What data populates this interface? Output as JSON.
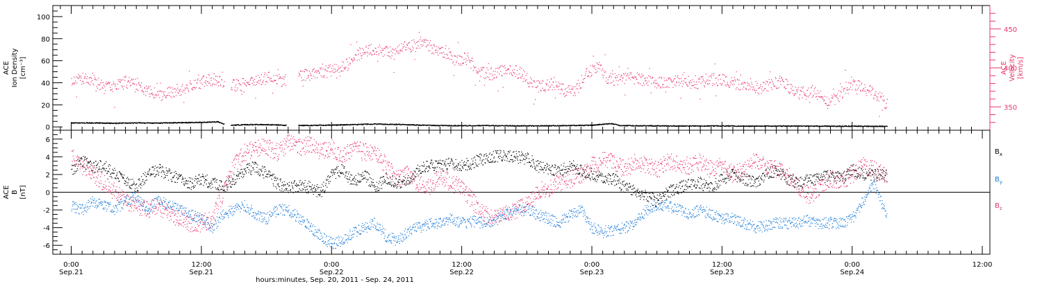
{
  "chart_data": [
    {
      "type": "scatter",
      "panel": "top",
      "ylabel": [
        "ACE",
        "Ion Density",
        "[cm⁻³]"
      ],
      "ylabel_right": [
        "ACE",
        "Velocity",
        "[km/s]"
      ],
      "ylim": [
        -3,
        110
      ],
      "yticks": [
        0,
        20,
        40,
        60,
        80,
        100
      ],
      "ylim_right": [
        320,
        480
      ],
      "yticks_right": [
        350,
        400,
        450
      ],
      "colors": {
        "density": "#000000",
        "velocity": "#e8336a"
      },
      "series": [
        {
          "axis": "left",
          "x_hours": [
            0,
            2,
            4,
            6,
            8,
            10,
            12,
            13.5,
            14.3,
            14.8,
            16,
            18,
            19.5,
            20.2,
            22,
            24,
            26,
            28,
            30,
            32,
            34,
            36,
            38,
            40,
            42,
            44,
            46,
            48,
            49.8,
            50.5,
            52,
            54,
            56,
            58,
            60,
            62,
            64,
            66,
            68,
            70,
            72,
            74,
            75.2
          ],
          "values": [
            3.5,
            3.6,
            3.2,
            3.6,
            3.4,
            3.8,
            4.0,
            4.6,
            1.5,
            1.5,
            2.0,
            2.0,
            1.6,
            1.2,
            1.3,
            1.6,
            2.0,
            2.6,
            2.2,
            1.6,
            1.2,
            1.0,
            1.2,
            1.0,
            0.9,
            1.0,
            1.1,
            1.5,
            3.0,
            1.2,
            1.0,
            0.9,
            0.8,
            0.8,
            0.8,
            0.7,
            0.7,
            0.7,
            0.7,
            0.6,
            0.6,
            0.5,
            0.5
          ]
        },
        {
          "axis": "right",
          "x_hours": [
            0,
            1,
            2,
            3,
            4,
            5,
            6,
            7,
            8,
            9,
            10,
            11,
            12,
            13,
            14,
            15.5,
            16.5,
            17.5,
            18.5,
            19.5,
            20.5,
            21.5,
            22.5,
            23.5,
            24.5,
            25.5,
            26.5,
            27.5,
            28.5,
            29.5,
            30.5,
            31.5,
            32.5,
            33.5,
            34.5,
            35.5,
            36.5,
            37.5,
            38.5,
            39.5,
            40.5,
            41.5,
            42.5,
            43.5,
            44.5,
            45.5,
            46.5,
            47.5,
            48.5,
            49.5,
            50.5,
            51.5,
            52.5,
            53.5,
            54.5,
            55.5,
            56.5,
            57.5,
            58.5,
            59.5,
            60.5,
            61.5,
            62.5,
            63.5,
            64.5,
            65.5,
            66.5,
            67.5,
            68.5,
            69.5,
            70.5,
            71.5,
            72.5,
            73.5,
            74.5,
            75.2
          ],
          "values": [
            383,
            387,
            385,
            374,
            376,
            382,
            380,
            370,
            365,
            368,
            372,
            378,
            382,
            385,
            380,
            377,
            382,
            385,
            387,
            383,
            388,
            390,
            392,
            395,
            400,
            405,
            418,
            425,
            422,
            419,
            425,
            428,
            430,
            425,
            420,
            410,
            412,
            395,
            392,
            395,
            398,
            392,
            378,
            376,
            380,
            370,
            372,
            393,
            402,
            385,
            385,
            388,
            385,
            382,
            380,
            381,
            384,
            380,
            384,
            385,
            383,
            378,
            380,
            372,
            379,
            383,
            370,
            368,
            370,
            355,
            360,
            375,
            378,
            370,
            365,
            352
          ]
        }
      ]
    },
    {
      "type": "scatter",
      "panel": "bottom",
      "ylabel": [
        "ACE",
        "B",
        "[nT]"
      ],
      "ylim": [
        -7,
        7
      ],
      "yticks": [
        -6,
        -4,
        -2,
        0,
        2,
        4,
        6
      ],
      "colors": {
        "Bx": "#000000",
        "By": "#1a7ad9",
        "Bz": "#e8336a"
      },
      "series": [
        {
          "name": "Bx",
          "x_hours": [
            0,
            1,
            2,
            3,
            4,
            5,
            6,
            7,
            8,
            9,
            10,
            11,
            12,
            13,
            14,
            15,
            16,
            17,
            18,
            19,
            20,
            21,
            22,
            23,
            24,
            25,
            26,
            27,
            28,
            29,
            30,
            31,
            32,
            33,
            34,
            35,
            36,
            37,
            38,
            39,
            40,
            41,
            42,
            43,
            44,
            45,
            46,
            47,
            48,
            49,
            50,
            51,
            52,
            53,
            54,
            55,
            56,
            57,
            58,
            59,
            60,
            61,
            62,
            63,
            64,
            65,
            66,
            67,
            68,
            69,
            70,
            71,
            72,
            73,
            74,
            75.2
          ],
          "values": [
            2.5,
            3.5,
            2.8,
            3.0,
            2.0,
            1.5,
            0.5,
            2.0,
            2.5,
            2.0,
            1.5,
            1.0,
            1.5,
            1.0,
            0.5,
            1.5,
            2.5,
            2.8,
            2.0,
            1.0,
            0.5,
            0.8,
            0.5,
            0.0,
            2.0,
            2.5,
            1.0,
            2.0,
            0.5,
            1.5,
            1.0,
            1.5,
            2.5,
            3.0,
            3.0,
            3.2,
            3.0,
            3.3,
            3.8,
            4.0,
            4.1,
            4.0,
            3.8,
            3.0,
            2.5,
            2.5,
            3.0,
            2.5,
            2.0,
            1.5,
            1.5,
            0.5,
            0.0,
            -0.5,
            -1.0,
            0.0,
            0.5,
            1.0,
            1.0,
            0.5,
            1.5,
            2.0,
            1.5,
            1.0,
            2.0,
            2.5,
            1.5,
            1.0,
            1.5,
            1.5,
            2.0,
            1.5,
            2.5,
            2.0,
            2.0,
            1.8
          ]
        },
        {
          "name": "By",
          "x_hours": [
            0,
            1,
            2,
            3,
            4,
            5,
            6,
            7,
            8,
            9,
            10,
            11,
            12,
            13,
            14,
            15,
            16,
            17,
            18,
            19,
            20,
            21,
            22,
            23,
            24,
            25,
            26,
            27,
            28,
            29,
            30,
            31,
            32,
            33,
            34,
            35,
            36,
            37,
            38,
            39,
            40,
            41,
            42,
            43,
            44,
            45,
            46,
            47,
            48,
            49,
            50,
            51,
            52,
            53,
            54,
            55,
            56,
            57,
            58,
            59,
            60,
            61,
            62,
            63,
            64,
            65,
            66,
            67,
            68,
            69,
            70,
            71,
            72,
            73,
            74,
            75.2
          ],
          "values": [
            -1.5,
            -2.0,
            -1.0,
            -1.5,
            -2.0,
            -1.0,
            -0.5,
            -2.0,
            -1.0,
            -1.5,
            -2.0,
            -2.5,
            -3.0,
            -4.0,
            -2.5,
            -2.0,
            -1.5,
            -2.5,
            -3.0,
            -2.0,
            -2.0,
            -3.0,
            -4.0,
            -5.0,
            -5.8,
            -5.5,
            -4.5,
            -4.0,
            -3.5,
            -5.0,
            -5.5,
            -4.5,
            -4.0,
            -3.5,
            -3.5,
            -3.0,
            -3.5,
            -3.3,
            -3.5,
            -3.2,
            -2.5,
            -2.0,
            -2.0,
            -2.5,
            -3.0,
            -3.5,
            -2.5,
            -2.0,
            -4.0,
            -4.5,
            -4.2,
            -4.0,
            -3.5,
            -2.0,
            -1.5,
            -1.5,
            -2.0,
            -2.5,
            -2.0,
            -2.5,
            -3.0,
            -3.0,
            -3.5,
            -4.0,
            -3.8,
            -3.5,
            -3.5,
            -3.5,
            -3.2,
            -3.5,
            -3.5,
            -3.5,
            -3.0,
            -1.0,
            1.0,
            -3.0
          ]
        },
        {
          "name": "Bz",
          "x_hours": [
            0,
            1,
            2,
            3,
            4,
            5,
            6,
            7,
            8,
            9,
            10,
            11,
            12,
            13,
            14,
            15,
            16,
            17,
            18,
            19,
            20,
            21,
            22,
            23,
            24,
            25,
            26,
            27,
            28,
            29,
            30,
            31,
            32,
            33,
            34,
            35,
            36,
            37,
            38,
            39,
            40,
            41,
            42,
            43,
            44,
            45,
            46,
            47,
            48,
            49,
            50,
            51,
            52,
            53,
            54,
            55,
            56,
            57,
            58,
            59,
            60,
            61,
            62,
            63,
            64,
            65,
            66,
            67,
            68,
            69,
            70,
            71,
            72,
            73,
            74,
            75.2
          ],
          "values": [
            4.0,
            3.0,
            2.0,
            1.0,
            0.0,
            -1.0,
            -1.5,
            -2.0,
            -1.5,
            -2.5,
            -3.0,
            -3.5,
            -3.5,
            -3.0,
            0.0,
            3.0,
            4.5,
            5.0,
            5.0,
            4.5,
            5.5,
            5.0,
            5.5,
            4.5,
            5.0,
            4.0,
            5.0,
            4.5,
            4.5,
            3.0,
            1.5,
            2.0,
            1.0,
            0.5,
            2.0,
            1.0,
            0.5,
            -1.0,
            -2.5,
            -3.0,
            -2.5,
            -2.0,
            -1.5,
            0.0,
            0.5,
            1.0,
            1.5,
            2.0,
            3.0,
            3.5,
            3.5,
            2.5,
            3.5,
            3.0,
            2.5,
            3.5,
            3.0,
            3.0,
            3.5,
            2.5,
            3.0,
            2.0,
            2.5,
            3.5,
            3.0,
            2.5,
            2.0,
            0.5,
            -0.5,
            0.5,
            1.5,
            1.0,
            2.0,
            3.0,
            2.5,
            1.8
          ]
        }
      ],
      "legend": [
        "B",
        "B",
        "B"
      ],
      "legend_subscripts": [
        "x",
        "y",
        "z"
      ]
    }
  ],
  "xaxis": {
    "ticks_hours": [
      0,
      12,
      24,
      36,
      48,
      60,
      72,
      84
    ],
    "tick_labels_top": [
      "0:00",
      "12:00",
      "0:00",
      "12:00",
      "0:00",
      "12:00",
      "0:00",
      "12:00"
    ],
    "tick_labels_bottom": [
      "Sep.21",
      "Sep.21",
      "Sep.22",
      "Sep.22",
      "Sep.23",
      "Sep.23",
      "Sep.24",
      ""
    ],
    "xlabel": "hours:minutes, Sep. 20, 2011 - Sep. 24, 2011"
  }
}
